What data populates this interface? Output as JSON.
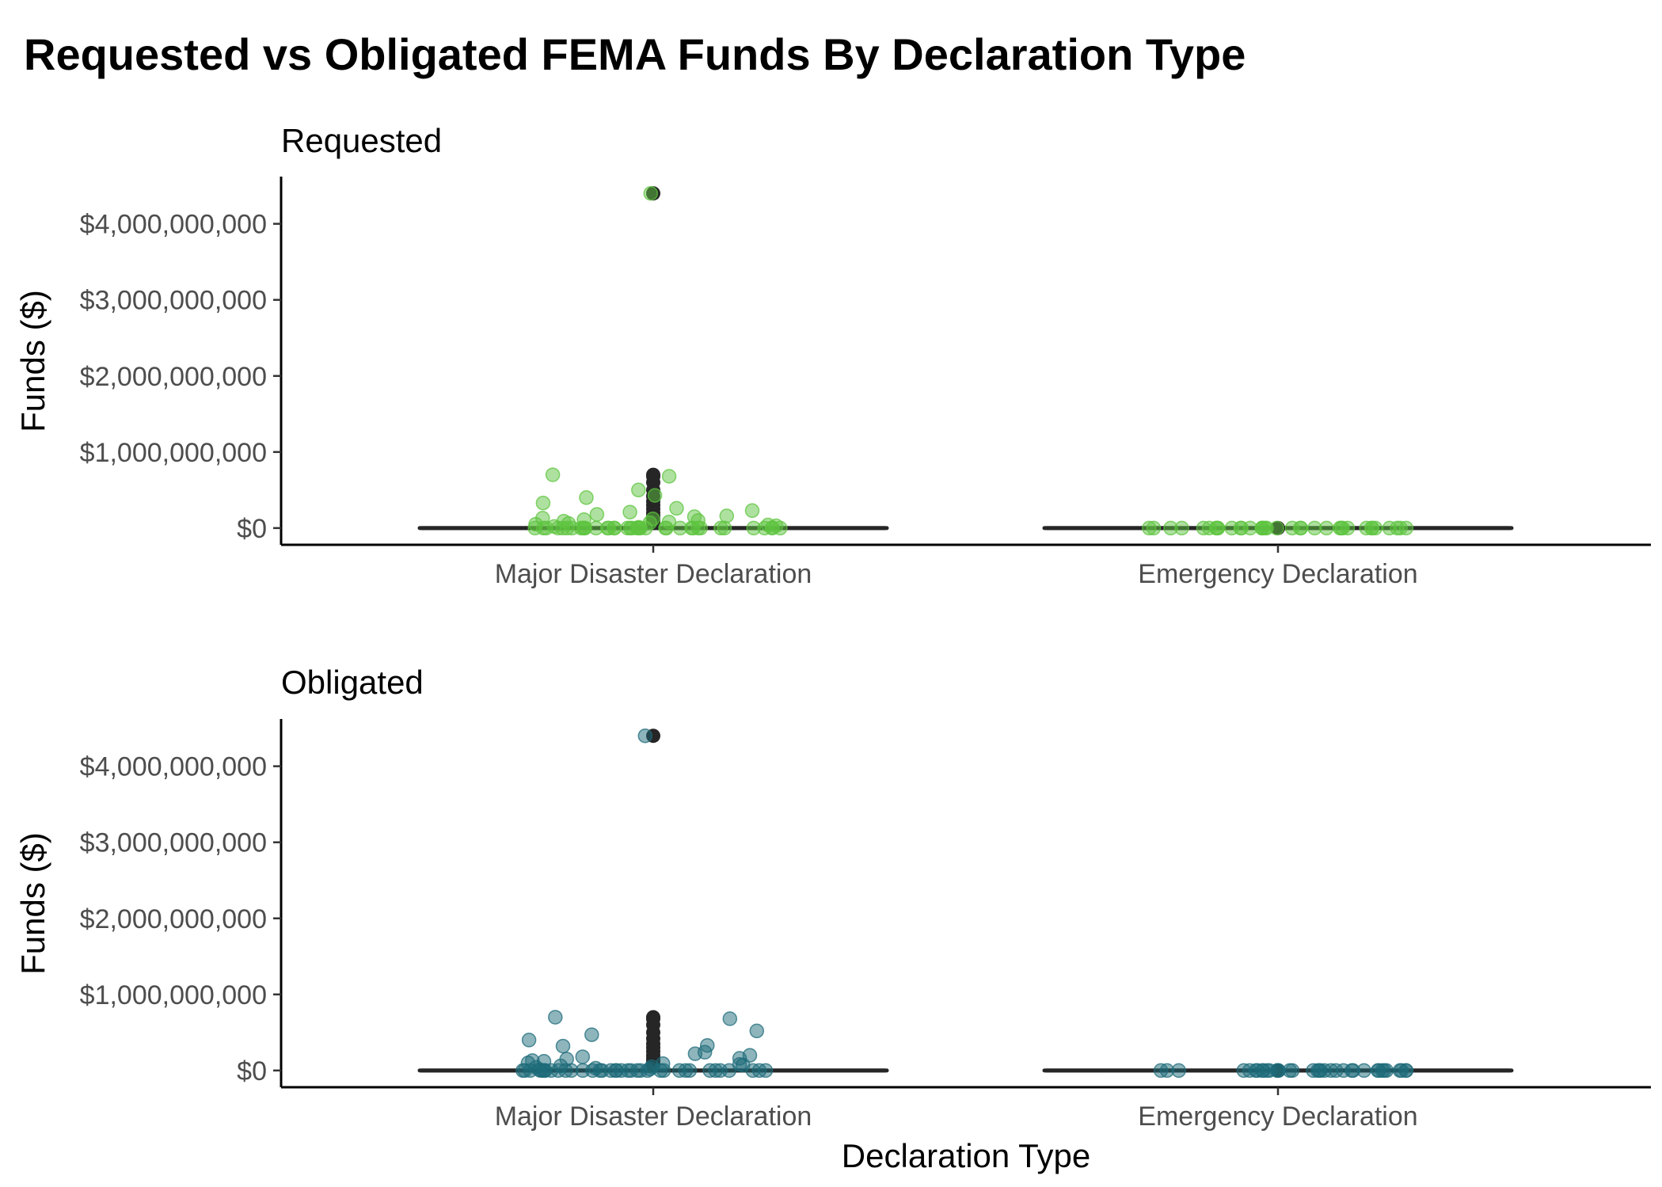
{
  "title": "Requested vs Obligated FEMA Funds By Declaration Type",
  "xlabel": "Declaration Type",
  "ylabel": "Funds ($)",
  "colors": {
    "requested": "#5ec43f",
    "obligated": "#1e6b7a",
    "box": "#262626",
    "axis": "#000000"
  },
  "chart_data": [
    {
      "type": "box",
      "facet": "Requested",
      "categories": [
        "Major Disaster Declaration",
        "Emergency Declaration"
      ],
      "y_ticks": [
        0,
        1000000000,
        2000000000,
        3000000000,
        4000000000
      ],
      "y_tick_labels": [
        "$0",
        "$1,000,000,000",
        "$2,000,000,000",
        "$3,000,000,000",
        "$4,000,000,000"
      ],
      "ylim": [
        -220000000,
        4600000000
      ],
      "boxes": [
        {
          "category": "Major Disaster Declaration",
          "median": 0,
          "q1": 0,
          "q3": 0,
          "outliers": [
            4400000000,
            700000000,
            680000000,
            600000000,
            500000000,
            420000000,
            350000000,
            300000000,
            250000000,
            200000000,
            160000000,
            120000000,
            80000000
          ]
        },
        {
          "category": "Emergency Declaration",
          "median": 0,
          "q1": 0,
          "q3": 0,
          "outliers": [
            0
          ]
        }
      ],
      "points": [
        {
          "category": "Major Disaster Declaration",
          "y": [
            4400000000,
            680000000,
            700000000,
            400000000,
            500000000,
            430000000,
            330000000,
            230000000,
            260000000,
            210000000,
            180000000,
            160000000,
            150000000,
            130000000,
            120000000,
            110000000,
            100000000,
            90000000,
            80000000,
            70000000,
            60000000,
            50000000,
            40000000,
            30000000,
            20000000,
            10000000,
            5000000,
            0,
            0,
            0,
            0,
            0,
            0,
            0,
            0,
            0,
            0,
            0,
            0,
            0,
            0,
            0,
            0,
            0,
            0,
            0,
            0,
            0,
            0,
            0,
            0,
            0,
            0,
            0,
            0,
            0,
            0,
            0,
            0,
            0,
            0,
            0,
            0
          ]
        },
        {
          "category": "Emergency Declaration",
          "y": [
            0,
            0,
            0,
            0,
            0,
            0,
            0,
            0,
            0,
            0,
            0,
            0,
            0,
            0,
            0,
            0,
            0,
            0,
            0,
            0,
            0,
            0,
            0,
            0,
            0,
            0,
            0,
            0,
            0,
            0,
            0,
            0,
            0,
            0,
            0,
            0
          ]
        }
      ]
    },
    {
      "type": "box",
      "facet": "Obligated",
      "categories": [
        "Major Disaster Declaration",
        "Emergency Declaration"
      ],
      "y_ticks": [
        0,
        1000000000,
        2000000000,
        3000000000,
        4000000000
      ],
      "y_tick_labels": [
        "$0",
        "$1,000,000,000",
        "$2,000,000,000",
        "$3,000,000,000",
        "$4,000,000,000"
      ],
      "ylim": [
        -220000000,
        4600000000
      ],
      "boxes": [
        {
          "category": "Major Disaster Declaration",
          "median": 0,
          "q1": 0,
          "q3": 0,
          "outliers": [
            4400000000,
            700000000,
            680000000,
            600000000,
            500000000,
            420000000,
            350000000,
            300000000,
            250000000,
            200000000,
            160000000,
            120000000,
            80000000
          ]
        },
        {
          "category": "Emergency Declaration",
          "median": 0,
          "q1": 0,
          "q3": 0,
          "outliers": [
            0
          ]
        }
      ],
      "points": [
        {
          "category": "Major Disaster Declaration",
          "y": [
            4400000000,
            700000000,
            680000000,
            520000000,
            470000000,
            400000000,
            320000000,
            330000000,
            240000000,
            220000000,
            200000000,
            180000000,
            160000000,
            150000000,
            130000000,
            120000000,
            100000000,
            90000000,
            80000000,
            70000000,
            60000000,
            50000000,
            40000000,
            30000000,
            20000000,
            10000000,
            0,
            0,
            0,
            0,
            0,
            0,
            0,
            0,
            0,
            0,
            0,
            0,
            0,
            0,
            0,
            0,
            0,
            0,
            0,
            0,
            0,
            0,
            0,
            0,
            0,
            0,
            0,
            0,
            0,
            0,
            0,
            0,
            0,
            0,
            0,
            0
          ]
        },
        {
          "category": "Emergency Declaration",
          "y": [
            0,
            0,
            0,
            0,
            0,
            0,
            0,
            0,
            0,
            0,
            0,
            0,
            0,
            0,
            0,
            0,
            0,
            0,
            0,
            0,
            0,
            0,
            0,
            0,
            0,
            0,
            0,
            0,
            0,
            0,
            0,
            0,
            0,
            0,
            0,
            0
          ]
        }
      ]
    }
  ]
}
